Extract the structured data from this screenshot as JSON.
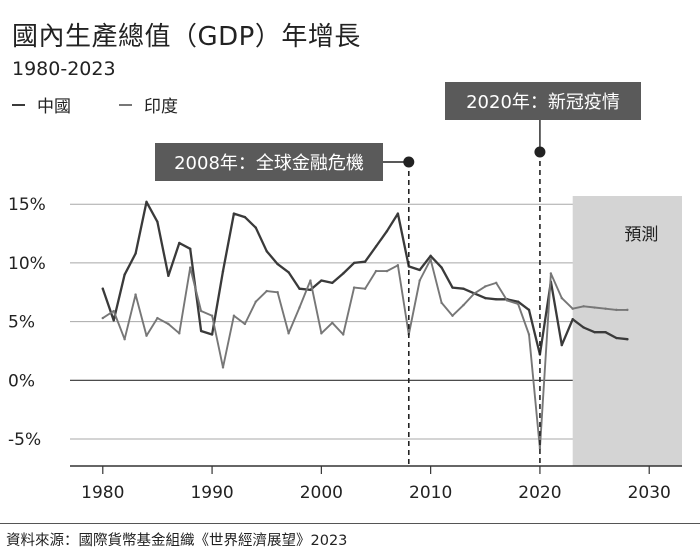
{
  "chart_data": {
    "type": "line",
    "title": "國內生產總值（GDP）年增長",
    "subtitle": "1980-2023",
    "xlim": [
      1977,
      2033
    ],
    "ylim": [
      -7.3,
      15.7
    ],
    "xticks": [
      {
        "value": 1980,
        "label": "1980"
      },
      {
        "value": 1990,
        "label": "1990"
      },
      {
        "value": 2000,
        "label": "2000"
      },
      {
        "value": 2010,
        "label": "2010"
      },
      {
        "value": 2020,
        "label": "2020"
      },
      {
        "value": 2030,
        "label": "2030"
      }
    ],
    "yticks": [
      {
        "value": 15,
        "label": "15%"
      },
      {
        "value": 10,
        "label": "10%"
      },
      {
        "value": 5,
        "label": "5%"
      },
      {
        "value": 0,
        "label": "0%"
      },
      {
        "value": -5,
        "label": "-5%"
      }
    ],
    "grid": true,
    "legend_position": "top-left",
    "forecast_region": {
      "from": 2023,
      "to": 2033,
      "label": "預測"
    },
    "series": [
      {
        "name": "中國",
        "color": "#3a3a3a",
        "x": [
          1980,
          1981,
          1982,
          1983,
          1984,
          1985,
          1986,
          1987,
          1988,
          1989,
          1990,
          1991,
          1992,
          1993,
          1994,
          1995,
          1996,
          1997,
          1998,
          1999,
          2000,
          2001,
          2002,
          2003,
          2004,
          2005,
          2006,
          2007,
          2008,
          2009,
          2010,
          2011,
          2012,
          2013,
          2014,
          2015,
          2016,
          2017,
          2018,
          2019,
          2020,
          2021,
          2022,
          2023,
          2024,
          2025,
          2026,
          2027,
          2028
        ],
        "values": [
          7.8,
          5.1,
          9.0,
          10.8,
          15.2,
          13.5,
          8.9,
          11.7,
          11.2,
          4.2,
          3.9,
          9.3,
          14.2,
          13.9,
          13.0,
          11.0,
          9.9,
          9.2,
          7.8,
          7.7,
          8.5,
          8.3,
          9.1,
          10.0,
          10.1,
          11.4,
          12.7,
          14.2,
          9.7,
          9.4,
          10.6,
          9.6,
          7.9,
          7.8,
          7.4,
          7.0,
          6.9,
          6.9,
          6.7,
          6.0,
          2.2,
          8.4,
          3.0,
          5.2,
          4.5,
          4.1,
          4.1,
          3.6,
          3.5
        ]
      },
      {
        "name": "印度",
        "color": "#777777",
        "x": [
          1980,
          1981,
          1982,
          1983,
          1984,
          1985,
          1986,
          1987,
          1988,
          1989,
          1990,
          1991,
          1992,
          1993,
          1994,
          1995,
          1996,
          1997,
          1998,
          1999,
          2000,
          2001,
          2002,
          2003,
          2004,
          2005,
          2006,
          2007,
          2008,
          2009,
          2010,
          2011,
          2012,
          2013,
          2014,
          2015,
          2016,
          2017,
          2018,
          2019,
          2020,
          2021,
          2022,
          2023,
          2024,
          2025,
          2026,
          2027,
          2028
        ],
        "values": [
          5.3,
          5.9,
          3.5,
          7.3,
          3.8,
          5.3,
          4.8,
          4.0,
          9.6,
          5.9,
          5.5,
          1.1,
          5.5,
          4.8,
          6.7,
          7.6,
          7.5,
          4.0,
          6.2,
          8.5,
          4.0,
          4.9,
          3.9,
          7.9,
          7.8,
          9.3,
          9.3,
          9.8,
          3.9,
          8.5,
          10.3,
          6.6,
          5.5,
          6.4,
          7.4,
          8.0,
          8.3,
          6.8,
          6.5,
          3.9,
          -5.8,
          9.1,
          7.0,
          6.1,
          6.3,
          6.2,
          6.1,
          6.0,
          6.0
        ]
      }
    ],
    "annotations": [
      {
        "x": 2008,
        "label": "2008年：全球金融危機"
      },
      {
        "x": 2020,
        "label": "2020年：新冠疫情"
      }
    ]
  },
  "source": "資料來源：國際貨幣基金組織《世界經濟展望》2023"
}
